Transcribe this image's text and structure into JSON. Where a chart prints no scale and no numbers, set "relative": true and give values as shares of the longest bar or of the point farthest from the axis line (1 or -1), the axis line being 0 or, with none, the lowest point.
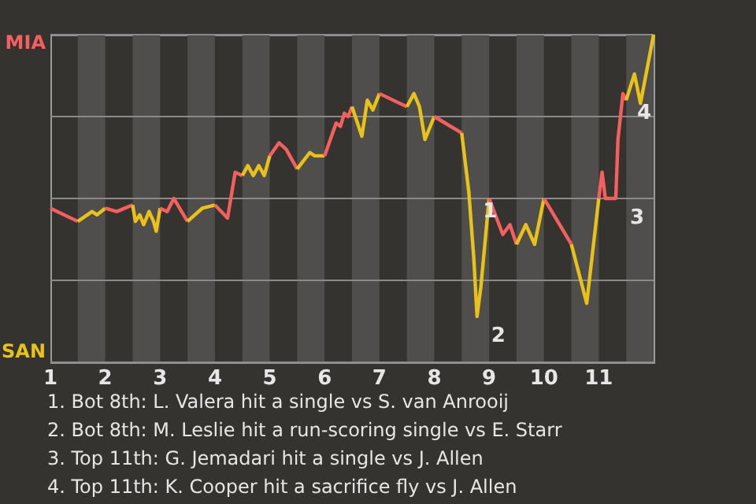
{
  "chart_data": {
    "type": "line",
    "relative": true,
    "series": [
      {
        "color": "#f4605f",
        "x": [
          1.0,
          1.5
        ],
        "values": [
          0.47,
          0.43
        ]
      },
      {
        "color": "#e8c21a",
        "x": [
          1.5,
          1.76,
          1.85,
          2.0
        ],
        "values": [
          0.43,
          0.46,
          0.45,
          0.47
        ]
      },
      {
        "color": "#f4605f",
        "x": [
          2.0,
          2.21,
          2.5
        ],
        "values": [
          0.47,
          0.46,
          0.48
        ]
      },
      {
        "color": "#e8c21a",
        "x": [
          2.5,
          2.55,
          2.63,
          2.7,
          2.8,
          2.88,
          2.93,
          3.0
        ],
        "values": [
          0.48,
          0.43,
          0.45,
          0.42,
          0.46,
          0.43,
          0.4,
          0.47
        ]
      },
      {
        "color": "#f4605f",
        "x": [
          3.0,
          3.13,
          3.25,
          3.5
        ],
        "values": [
          0.47,
          0.46,
          0.5,
          0.43
        ]
      },
      {
        "color": "#e8c21a",
        "x": [
          3.5,
          3.77,
          4.0
        ],
        "values": [
          0.43,
          0.47,
          0.48
        ]
      },
      {
        "color": "#f4605f",
        "x": [
          4.0,
          4.23,
          4.37,
          4.5
        ],
        "values": [
          0.48,
          0.44,
          0.58,
          0.57
        ]
      },
      {
        "color": "#e8c21a",
        "x": [
          4.5,
          4.6,
          4.7,
          4.8,
          4.9,
          5.0
        ],
        "values": [
          0.57,
          0.6,
          0.57,
          0.6,
          0.57,
          0.63
        ]
      },
      {
        "color": "#f4605f",
        "x": [
          5.0,
          5.17,
          5.3,
          5.5
        ],
        "values": [
          0.63,
          0.67,
          0.65,
          0.59
        ]
      },
      {
        "color": "#e8c21a",
        "x": [
          5.5,
          5.73,
          5.82,
          6.0
        ],
        "values": [
          0.59,
          0.64,
          0.63,
          0.63
        ]
      },
      {
        "color": "#f4605f",
        "x": [
          6.0,
          6.21,
          6.29,
          6.36,
          6.43,
          6.5
        ],
        "values": [
          0.63,
          0.73,
          0.72,
          0.76,
          0.75,
          0.78
        ]
      },
      {
        "color": "#e8c21a",
        "x": [
          6.5,
          6.68,
          6.78,
          6.88,
          7.0
        ],
        "values": [
          0.78,
          0.69,
          0.8,
          0.77,
          0.82
        ]
      },
      {
        "color": "#f4605f",
        "x": [
          7.0,
          7.5
        ],
        "values": [
          0.82,
          0.78
        ]
      },
      {
        "color": "#e8c21a",
        "x": [
          7.5,
          7.63,
          7.73,
          7.83,
          8.0
        ],
        "values": [
          0.78,
          0.82,
          0.78,
          0.68,
          0.75
        ]
      },
      {
        "color": "#f4605f",
        "x": [
          8.0,
          8.5
        ],
        "values": [
          0.75,
          0.7
        ]
      },
      {
        "color": "#e8c21a",
        "x": [
          8.5,
          8.63,
          8.72,
          8.78,
          8.85,
          9.0
        ],
        "values": [
          0.7,
          0.52,
          0.32,
          0.14,
          0.23,
          0.5
        ]
      },
      {
        "color": "#f4605f",
        "x": [
          9.0,
          9.25,
          9.38,
          9.5
        ],
        "values": [
          0.5,
          0.39,
          0.42,
          0.36
        ]
      },
      {
        "color": "#e8c21a",
        "x": [
          9.5,
          9.67,
          9.83,
          10.0
        ],
        "values": [
          0.36,
          0.42,
          0.36,
          0.5
        ]
      },
      {
        "color": "#f4605f",
        "x": [
          10.0,
          10.5
        ],
        "values": [
          0.5,
          0.36
        ]
      },
      {
        "color": "#e8c21a",
        "x": [
          10.5,
          10.78,
          11.0
        ],
        "values": [
          0.36,
          0.18,
          0.5
        ]
      },
      {
        "color": "#f4605f",
        "x": [
          11.0,
          11.06,
          11.12,
          11.31,
          11.35,
          11.44,
          11.5
        ],
        "values": [
          0.5,
          0.58,
          0.5,
          0.5,
          0.68,
          0.82,
          0.8
        ]
      },
      {
        "color": "#e8c21a",
        "x": [
          11.5,
          11.65,
          11.76,
          12.0
        ],
        "values": [
          0.8,
          0.88,
          0.79,
          1.0
        ]
      }
    ],
    "xlim": [
      1,
      12
    ],
    "xticks": [
      1,
      2,
      3,
      4,
      5,
      6,
      7,
      8,
      9,
      10,
      11
    ],
    "grid": "y",
    "marker": "none",
    "line_style": "solid",
    "bands": [
      {
        "axis": "x",
        "from": 1.5,
        "to": 2,
        "color": "#4f4e4c"
      },
      {
        "axis": "x",
        "from": 2.5,
        "to": 3,
        "color": "#4f4e4c"
      },
      {
        "axis": "x",
        "from": 3.5,
        "to": 4,
        "color": "#4f4e4c"
      },
      {
        "axis": "x",
        "from": 4.5,
        "to": 5,
        "color": "#4f4e4c"
      },
      {
        "axis": "x",
        "from": 5.5,
        "to": 6,
        "color": "#4f4e4c"
      },
      {
        "axis": "x",
        "from": 6.5,
        "to": 7,
        "color": "#4f4e4c"
      },
      {
        "axis": "x",
        "from": 7.5,
        "to": 8,
        "color": "#4f4e4c"
      },
      {
        "axis": "x",
        "from": 8.5,
        "to": 9,
        "color": "#4f4e4c"
      },
      {
        "axis": "x",
        "from": 9.5,
        "to": 10,
        "color": "#4f4e4c"
      },
      {
        "axis": "x",
        "from": 10.5,
        "to": 11,
        "color": "#4f4e4c"
      },
      {
        "axis": "x",
        "from": 11.5,
        "to": 12,
        "color": "#4f4e4c"
      }
    ],
    "annotations": [
      "MIA",
      "SAN",
      {
        "text": "1",
        "x": 8.63,
        "y": 0.52
      },
      {
        "text": "2",
        "x": 8.78,
        "y": 0.14
      },
      {
        "text": "3",
        "x": 11.31,
        "y": 0.5
      },
      {
        "text": "4",
        "x": 11.44,
        "y": 0.82
      },
      "1. Bot 8th: L. Valera hit a single vs S. van Anrooij",
      "2. Bot 8th: M. Leslie hit a run-scoring single vs E. Starr",
      "3. Top 11th: G. Jemadari hit a single vs J. Allen",
      "4. Top 11th: K. Cooper hit a sacrifice fly vs J. Allen"
    ]
  }
}
